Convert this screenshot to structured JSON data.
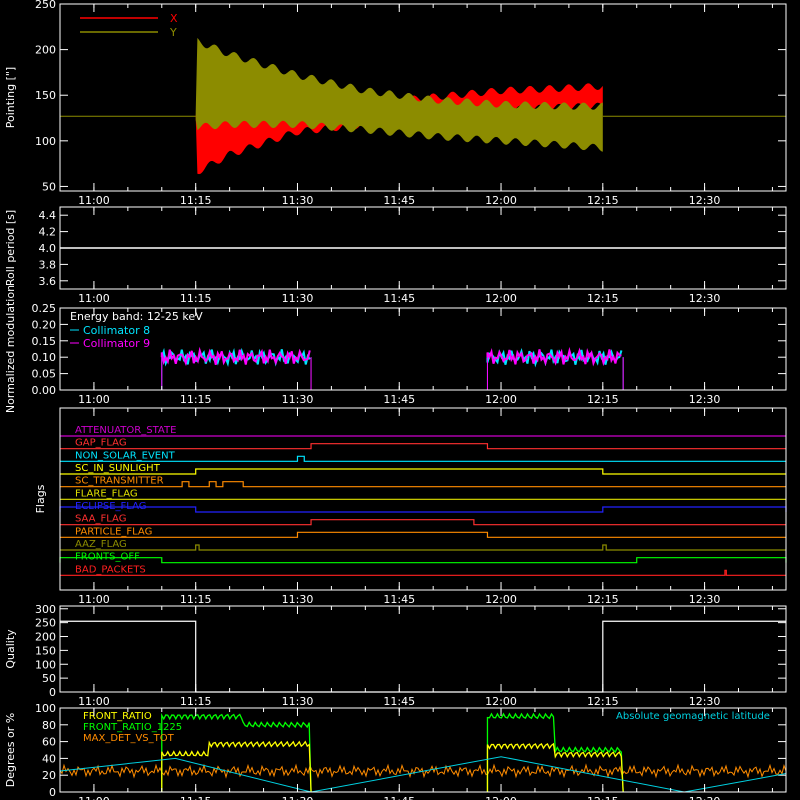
{
  "colors": {
    "background": "#000000",
    "axes": "#ffffff",
    "x": "#ff0000",
    "y": "#8c8c00",
    "collimator8": "#00e5ff",
    "collimator9": "#ff00ff",
    "front_ratio": "#ffff00",
    "front_ratio_1225": "#00ff00",
    "max_det": "#ff8c00",
    "geomag": "#00d0e0"
  },
  "time_axis": {
    "range": [
      "10:55",
      "12:42"
    ],
    "ticks": [
      "11:00",
      "11:15",
      "11:30",
      "11:45",
      "12:00",
      "12:15",
      "12:30"
    ]
  },
  "chart_data": [
    {
      "type": "line",
      "panel": "pointing",
      "ylabel": "Pointing [\"]",
      "ylim": [
        45,
        250
      ],
      "yticks": [
        50,
        100,
        150,
        200,
        250
      ],
      "legend": [
        "X",
        "Y"
      ],
      "series": [
        {
          "name": "X",
          "envelope_time": [
            "10:55",
            "11:15",
            "11:15",
            "11:20",
            "11:30",
            "11:40",
            "11:50",
            "12:00",
            "12:10",
            "12:15",
            "12:15",
            "12:42"
          ],
          "upper": [
            127,
            127,
            145,
            142,
            138,
            140,
            148,
            155,
            158,
            160,
            127,
            127
          ],
          "lower": [
            127,
            127,
            65,
            85,
            110,
            118,
            128,
            134,
            137,
            138,
            127,
            127
          ]
        },
        {
          "name": "Y",
          "envelope_time": [
            "10:55",
            "11:15",
            "11:15",
            "11:20",
            "11:30",
            "11:40",
            "11:50",
            "12:00",
            "12:10",
            "12:15",
            "12:15",
            "12:42"
          ],
          "upper": [
            127,
            127,
            210,
            195,
            172,
            155,
            145,
            140,
            138,
            138,
            127,
            127
          ],
          "lower": [
            127,
            127,
            115,
            118,
            118,
            112,
            105,
            100,
            95,
            92,
            127,
            127
          ]
        }
      ]
    },
    {
      "type": "line",
      "panel": "roll",
      "ylabel": "Roll period [s]",
      "ylim": [
        3.5,
        4.5
      ],
      "yticks": [
        "3.6",
        "3.8",
        "4.0",
        "4.2",
        "4.4"
      ],
      "series": [
        {
          "time": [
            "10:55",
            "12:42"
          ],
          "values": [
            4.0,
            4.0
          ]
        }
      ]
    },
    {
      "type": "line",
      "panel": "modulation",
      "ylabel": "Normalized modulation",
      "ylim": [
        0,
        0.25
      ],
      "yticks": [
        "0.00",
        "0.05",
        "0.10",
        "0.15",
        "0.20",
        "0.25"
      ],
      "annotation": "Energy band: 12-25 keV",
      "series": [
        {
          "name": "Collimator 8",
          "segments": [
            [
              "11:10",
              "11:32"
            ],
            [
              "11:58",
              "12:18"
            ]
          ],
          "level": 0.1
        },
        {
          "name": "Collimator 9",
          "segments": [
            [
              "11:10",
              "11:32"
            ],
            [
              "11:58",
              "12:18"
            ]
          ],
          "level": 0.1
        }
      ]
    },
    {
      "type": "line",
      "panel": "flags",
      "ylabel": "Flags",
      "flags": [
        {
          "name": "ATTENUATOR_STATE",
          "color": "#cc00cc",
          "high": []
        },
        {
          "name": "GAP_FLAG",
          "color": "#ff3030",
          "high": [
            [
              "11:32",
              "11:58"
            ]
          ]
        },
        {
          "name": "NON_SOLAR_EVENT",
          "color": "#00e5ff",
          "high": [
            [
              "11:30",
              "11:31"
            ]
          ]
        },
        {
          "name": "SC_IN_SUNLIGHT",
          "color": "#ffff00",
          "high": [
            [
              "11:15",
              "12:15"
            ]
          ]
        },
        {
          "name": "SC_TRANSMITTER",
          "color": "#ff8c00",
          "high": [
            [
              "11:13",
              "11:14"
            ],
            [
              "11:17",
              "11:18"
            ],
            [
              "11:19",
              "11:22"
            ]
          ]
        },
        {
          "name": "FLARE_FLAG",
          "color": "#e0e000",
          "high": []
        },
        {
          "name": "ECLIPSE_FLAG",
          "color": "#2222ff",
          "high": [
            [
              "10:55",
              "11:15"
            ],
            [
              "12:15",
              "12:42"
            ]
          ]
        },
        {
          "name": "SAA_FLAG",
          "color": "#ff3030",
          "high": [
            [
              "11:32",
              "11:56"
            ]
          ]
        },
        {
          "name": "PARTICLE_FLAG",
          "color": "#ff8c00",
          "high": [
            [
              "11:30",
              "11:58"
            ]
          ]
        },
        {
          "name": "AAZ_FLAG",
          "color": "#8c8c00",
          "high": [
            [
              "11:15",
              "11:15.5"
            ],
            [
              "12:15",
              "12:15.5"
            ]
          ]
        },
        {
          "name": "FRONTS_OFF",
          "color": "#00ff00",
          "high": [
            [
              "10:55",
              "11:10"
            ],
            [
              "12:20",
              "12:42"
            ]
          ]
        },
        {
          "name": "BAD_PACKETS",
          "color": "#ff2020",
          "high": [
            [
              "12:33",
              "12:33.2"
            ]
          ]
        }
      ]
    },
    {
      "type": "line",
      "panel": "quality",
      "ylabel": "Quality",
      "ylim": [
        0,
        310
      ],
      "yticks": [
        0,
        50,
        100,
        150,
        200,
        250,
        300
      ],
      "series": [
        {
          "time": [
            "10:55",
            "11:15",
            "11:15",
            "12:15",
            "12:15",
            "12:42"
          ],
          "values": [
            255,
            255,
            0,
            0,
            255,
            255
          ]
        }
      ]
    },
    {
      "type": "line",
      "panel": "ratios",
      "ylabel": "Degrees or %",
      "ylim": [
        0,
        100
      ],
      "yticks": [
        0,
        20,
        40,
        60,
        80,
        100
      ],
      "legend": [
        "FRONT_RATIO",
        "FRONT_RATIO_1225",
        "MAX_DET_VS_TOT",
        "Absolute geomagnetic latitude"
      ],
      "series": [
        {
          "name": "FRONT_RATIO_1225",
          "time": [
            "11:10",
            "11:22",
            "11:22",
            "11:32",
            "11:58",
            "12:08",
            "12:08",
            "12:18"
          ],
          "values": [
            90,
            90,
            80,
            80,
            90,
            90,
            50,
            50
          ]
        },
        {
          "name": "FRONT_RATIO",
          "time": [
            "11:10",
            "11:17",
            "11:17",
            "11:32",
            "11:58",
            "12:08",
            "12:08",
            "12:18"
          ],
          "values": [
            45,
            45,
            57,
            57,
            55,
            55,
            45,
            45
          ]
        },
        {
          "name": "MAX_DET_VS_TOT",
          "time": [
            "10:55",
            "12:42"
          ],
          "values": [
            25,
            25
          ]
        },
        {
          "name": "Absolute geomagnetic latitude",
          "time": [
            "10:55",
            "11:12",
            "11:32",
            "12:00",
            "12:27",
            "12:42"
          ],
          "values": [
            25,
            40,
            0,
            42,
            0,
            22
          ]
        }
      ]
    }
  ]
}
